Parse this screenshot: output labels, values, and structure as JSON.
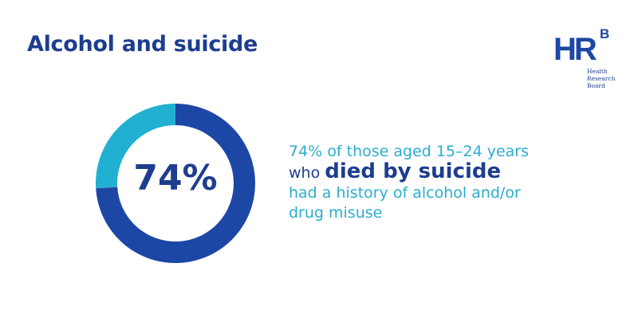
{
  "title": "Alcohol and suicide",
  "logo": {
    "letters": "HR",
    "superscript": "B",
    "lines": [
      "Health",
      "Research",
      "Board"
    ]
  },
  "chart_data": {
    "type": "pie",
    "variant": "donut",
    "categories": [
      "history of alcohol and/or drug misuse",
      "other"
    ],
    "values": [
      74,
      26
    ],
    "colors": [
      "#1d47a5",
      "#22b0d2"
    ],
    "center_label": "74%"
  },
  "description": {
    "line1": "74% of those aged 15–24 years",
    "line2_prefix": "who ",
    "line2_emphasis": "died by suicide",
    "line3": "had a history of alcohol and/or",
    "line4": "drug misuse"
  }
}
